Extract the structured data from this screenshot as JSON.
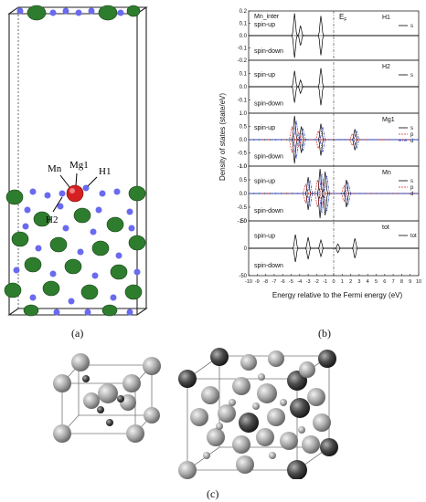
{
  "figure": {
    "panel_a": {
      "caption": "(a)",
      "atom_labels": {
        "mn": "Mn",
        "mg1": "Mg1",
        "h1": "H1",
        "h2": "H2"
      }
    },
    "panel_b": {
      "caption": "(b)",
      "ylabel": "Density of states (state/eV)",
      "xlabel": "Energy relative to the Fermi energy (eV)",
      "fermi_label": "E",
      "fermi_sub": "F",
      "spin_up": "spin-up",
      "spin_down": "spin-down",
      "colors": {
        "s": "#000000",
        "p": "#d62728",
        "d": "#1f3fbf"
      }
    },
    "panel_c": {
      "caption": "(c)"
    }
  },
  "chart_data": {
    "type": "line",
    "title": "",
    "xlabel": "Energy relative to the Fermi energy (eV)",
    "ylabel": "Density of states (state/eV)",
    "xlim": [
      -10,
      10
    ],
    "x_ticks": [
      "-10",
      "-9",
      "-8",
      "-7",
      "-6",
      "-5",
      "-4",
      "-3",
      "-2",
      "-1",
      "0",
      "1",
      "2",
      "3",
      "4",
      "5",
      "6",
      "7",
      "8",
      "9",
      "10"
    ],
    "fermi_level": 0,
    "subplots": [
      {
        "name": "H1",
        "panel_title": "Mn_inter",
        "legend": [
          "s"
        ],
        "ylim": [
          -0.2,
          0.2
        ],
        "yticks": [
          "0.2",
          "0.1",
          "0.0",
          "-0.1",
          "-0.2"
        ]
      },
      {
        "name": "H2",
        "legend": [
          "s"
        ],
        "ylim": [
          -0.2,
          0.2
        ],
        "yticks": [
          "0.1",
          "0.0",
          "-0.1"
        ]
      },
      {
        "name": "Mg1",
        "legend": [
          "s",
          "p",
          "d"
        ],
        "ylim": [
          -1.0,
          1.0
        ],
        "yticks": [
          "1.0",
          "0.5",
          "0.0",
          "-0.5",
          "-1.0"
        ]
      },
      {
        "name": "Mn",
        "legend": [
          "s",
          "p",
          "d"
        ],
        "ylim": [
          -1.0,
          1.0
        ],
        "yticks": [
          "1.0",
          "0.5",
          "0.0",
          "-0.5",
          "-1.0"
        ]
      },
      {
        "name": "tot",
        "legend": [
          "tot"
        ],
        "ylim": [
          -50,
          50
        ],
        "yticks": [
          "50",
          "0",
          "-50"
        ]
      }
    ]
  }
}
